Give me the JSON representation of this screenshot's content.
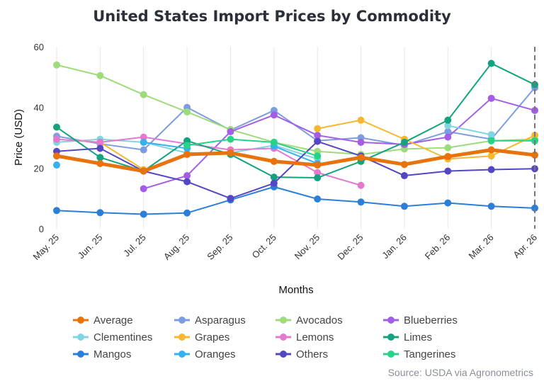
{
  "chart_data": {
    "type": "line",
    "title": "United States Import Prices by Commodity",
    "xlabel": "Months",
    "ylabel": "Price (USD)",
    "source": "Source: USDA via Agronometrics",
    "categories": [
      "May. 25",
      "Jun. 25",
      "Jul. 25",
      "Aug. 25",
      "Sep. 25",
      "Oct. 25",
      "Nov. 25",
      "Dec. 25",
      "Jan. 26",
      "Feb. 26",
      "Mar. 26",
      "Apr. 26"
    ],
    "yticks": [
      0,
      20,
      40,
      60
    ],
    "ylim": [
      0,
      60
    ],
    "grid": "vertical",
    "legend_position": "bottom",
    "series": [
      {
        "name": "Average",
        "color": "#e8720c",
        "emphasis": true,
        "values": [
          24,
          21.5,
          19,
          24.5,
          25,
          22.2,
          21,
          23.5,
          21.2,
          23.8,
          26,
          24.3
        ]
      },
      {
        "name": "Asparagus",
        "color": "#7c9ee0",
        "values": [
          30.5,
          28,
          26,
          40,
          32.5,
          39,
          29,
          30,
          27.5,
          32,
          29.5,
          46.5
        ]
      },
      {
        "name": "Avocados",
        "color": "#9edb7a",
        "values": [
          54,
          50.5,
          44.2,
          38.5,
          32.7,
          28.5,
          25.5,
          24.5,
          26.3,
          26.7,
          29,
          29.5
        ]
      },
      {
        "name": "Blueberries",
        "color": "#a45ee6",
        "values": [
          null,
          null,
          13.2,
          17.5,
          32,
          37.5,
          30.8,
          28.5,
          27.8,
          30.2,
          43,
          39
        ]
      },
      {
        "name": "Clementines",
        "color": "#7fd6e0",
        "values": [
          28.5,
          29.5,
          28.5,
          25,
          25,
          27.5,
          23,
          null,
          null,
          34,
          31,
          null
        ]
      },
      {
        "name": "Grapes",
        "color": "#f5b82e",
        "values": [
          29.5,
          28.5,
          19.5,
          null,
          null,
          null,
          33,
          35.8,
          29.5,
          23,
          24,
          30.8
        ]
      },
      {
        "name": "Lemons",
        "color": "#e27ad0",
        "values": [
          29.5,
          28.5,
          30.2,
          28,
          26,
          26.5,
          18.5,
          14.3,
          null,
          null,
          null,
          null
        ]
      },
      {
        "name": "Limes",
        "color": "#14a37f",
        "values": [
          33.5,
          23.5,
          19,
          29,
          24.5,
          17,
          16.8,
          22.2,
          28.5,
          35.8,
          54.5,
          47.5
        ]
      },
      {
        "name": "Mangos",
        "color": "#2b7fd9",
        "values": [
          6,
          5.3,
          4.8,
          5.2,
          9.5,
          13.8,
          9.8,
          8.8,
          7.4,
          8.5,
          7.4,
          6.8
        ]
      },
      {
        "name": "Oranges",
        "color": "#35b0f0",
        "values": [
          21,
          null,
          28.5,
          26.5,
          null,
          27.2,
          21.5,
          null,
          null,
          null,
          null,
          null
        ]
      },
      {
        "name": "Others",
        "color": "#5546c4",
        "values": [
          25.5,
          26.5,
          19,
          15.5,
          10,
          15,
          28.8,
          24,
          17.5,
          19,
          19.5,
          19.8
        ]
      },
      {
        "name": "Tangerines",
        "color": "#27d387",
        "values": [
          null,
          null,
          null,
          27.5,
          29.5,
          28.5,
          24,
          null,
          null,
          null,
          29,
          29
        ]
      }
    ]
  }
}
